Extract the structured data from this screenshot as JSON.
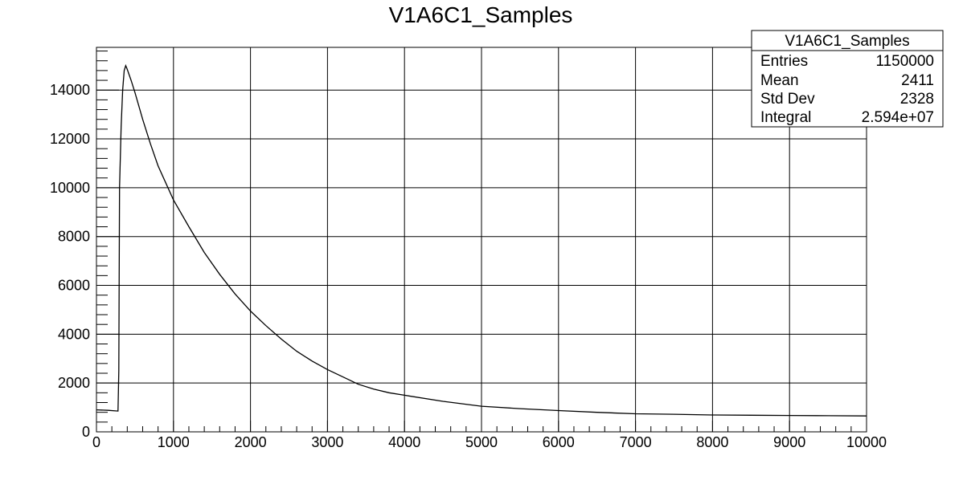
{
  "chart_data": {
    "type": "line",
    "title": "V1A6C1_Samples",
    "xlabel": "",
    "ylabel": "",
    "xlim": [
      0,
      10000
    ],
    "ylim": [
      0,
      15750
    ],
    "x_ticks": [
      0,
      1000,
      2000,
      3000,
      4000,
      5000,
      6000,
      7000,
      8000,
      9000,
      10000
    ],
    "y_ticks": [
      0,
      2000,
      4000,
      6000,
      8000,
      10000,
      12000,
      14000
    ],
    "grid": true,
    "legend": "none",
    "line_color": "#000000",
    "series": [
      {
        "x": [
          0,
          150,
          280,
          290,
          300,
          320,
          340,
          360,
          380,
          400,
          450,
          500,
          600,
          700,
          800,
          900,
          1000,
          1200,
          1400,
          1600,
          1800,
          2000,
          2200,
          2400,
          2600,
          2800,
          3000,
          3200,
          3400,
          3600,
          3800,
          4000,
          4500,
          5000,
          5500,
          6000,
          6500,
          7000,
          7500,
          8000,
          8500,
          9000,
          9500,
          10000
        ],
        "values": [
          900,
          880,
          850,
          2500,
          10000,
          12500,
          14000,
          14800,
          15000,
          14850,
          14400,
          13900,
          12800,
          11800,
          10900,
          10200,
          9500,
          8400,
          7350,
          6450,
          5650,
          4950,
          4350,
          3800,
          3300,
          2900,
          2550,
          2250,
          1950,
          1750,
          1600,
          1500,
          1250,
          1050,
          950,
          870,
          800,
          740,
          720,
          690,
          680,
          670,
          660,
          650
        ]
      }
    ]
  },
  "stats_box": {
    "title": "V1A6C1_Samples",
    "rows": [
      {
        "label": "Entries",
        "value": "1150000"
      },
      {
        "label": "Mean",
        "value": "2411"
      },
      {
        "label": "Std Dev",
        "value": "2328"
      },
      {
        "label": "Integral",
        "value": "2.594e+07"
      }
    ]
  }
}
